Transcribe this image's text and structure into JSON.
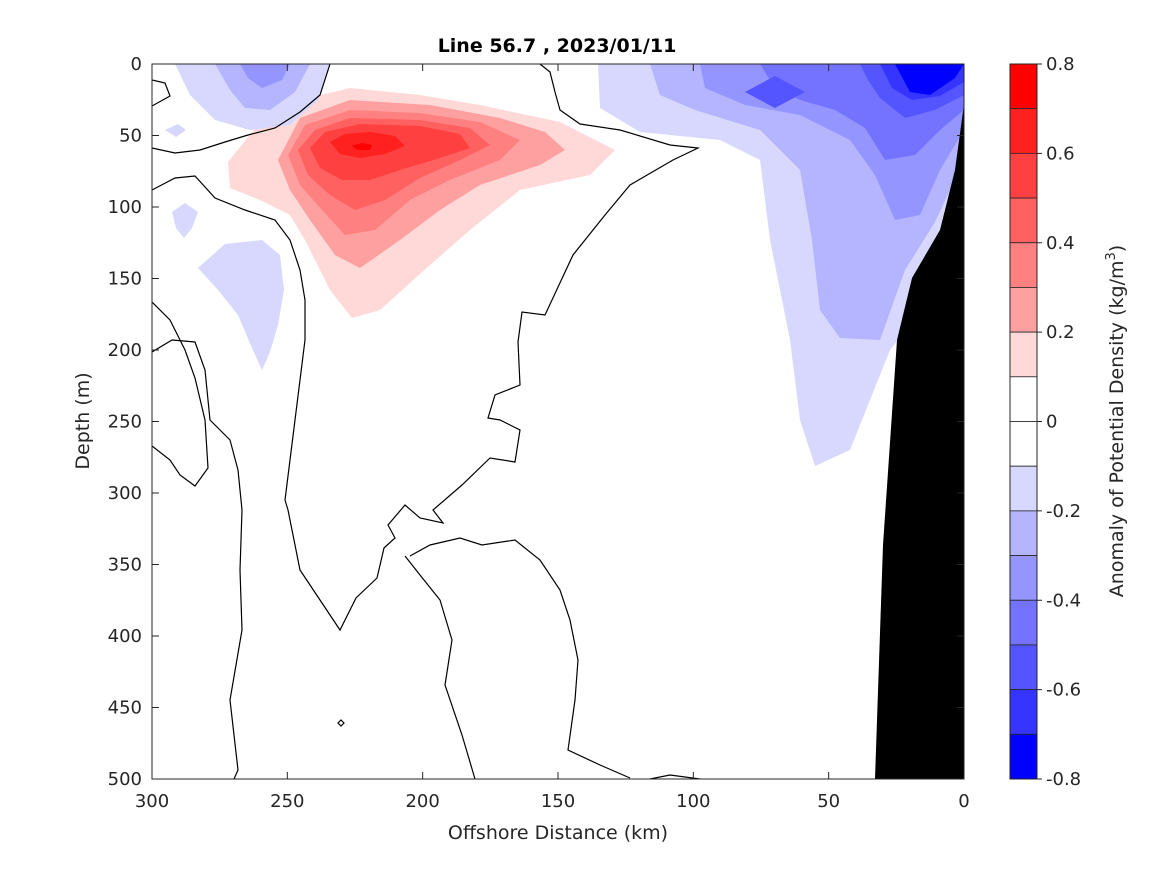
{
  "chart_data": {
    "type": "heatmap",
    "title": "Line 56.7 , 2023/01/11",
    "xlabel": "Offshore Distance (km)",
    "ylabel": "Depth (m)",
    "xlim": [
      300,
      0
    ],
    "ylim": [
      500,
      0
    ],
    "x_reversed": true,
    "y_reversed": true,
    "x_ticks": [
      300,
      250,
      200,
      150,
      100,
      50,
      0
    ],
    "y_ticks": [
      0,
      50,
      100,
      150,
      200,
      250,
      300,
      350,
      400,
      450,
      500
    ],
    "colorbar": {
      "label_main": "Anomaly of Potential Density (kg/m",
      "label_sup": "3",
      "label_end": ")",
      "range": [
        -0.8,
        0.8
      ],
      "tick_values": [
        0.8,
        0.6,
        0.4,
        0.2,
        0,
        -0.2,
        -0.4,
        -0.6,
        -0.8
      ],
      "tick_labels": [
        "0.8",
        "0.6",
        "0.4",
        "0.2",
        "0",
        "-0.2",
        "-0.4",
        "-0.6",
        "-0.8"
      ],
      "levels": [
        {
          "min": 0.7,
          "max": 0.8,
          "color": "#ff0000"
        },
        {
          "min": 0.6,
          "max": 0.7,
          "color": "#ff2020"
        },
        {
          "min": 0.5,
          "max": 0.6,
          "color": "#ff4040"
        },
        {
          "min": 0.4,
          "max": 0.5,
          "color": "#ff6060"
        },
        {
          "min": 0.3,
          "max": 0.4,
          "color": "#ff8080"
        },
        {
          "min": 0.2,
          "max": 0.3,
          "color": "#ffa0a0"
        },
        {
          "min": 0.1,
          "max": 0.2,
          "color": "#ffd8d8"
        },
        {
          "min": 0.0,
          "max": 0.1,
          "color": "#ffffff"
        },
        {
          "min": -0.1,
          "max": 0.0,
          "color": "#ffffff"
        },
        {
          "min": -0.2,
          "max": -0.1,
          "color": "#d8d8ff"
        },
        {
          "min": -0.3,
          "max": -0.2,
          "color": "#b4b4ff"
        },
        {
          "min": -0.4,
          "max": -0.3,
          "color": "#9595ff"
        },
        {
          "min": -0.5,
          "max": -0.4,
          "color": "#7373ff"
        },
        {
          "min": -0.6,
          "max": -0.5,
          "color": "#5555ff"
        },
        {
          "min": -0.7,
          "max": -0.6,
          "color": "#3535ff"
        },
        {
          "min": -0.8,
          "max": -0.7,
          "color": "#0000ff"
        }
      ]
    },
    "bathymetry_color": "#000000",
    "anomaly_features": [
      {
        "name": "positive-core",
        "value": 0.7,
        "center_km": 220,
        "center_depth_m": 60
      },
      {
        "name": "offshore-negative",
        "value": -0.3,
        "center_km": 255,
        "center_depth_m": 10
      },
      {
        "name": "nearshore-negative",
        "value": -0.7,
        "center_km": 15,
        "center_depth_m": 15
      },
      {
        "name": "midcolumn-negative",
        "value": -0.2,
        "center_km": 265,
        "center_depth_m": 170
      }
    ]
  }
}
